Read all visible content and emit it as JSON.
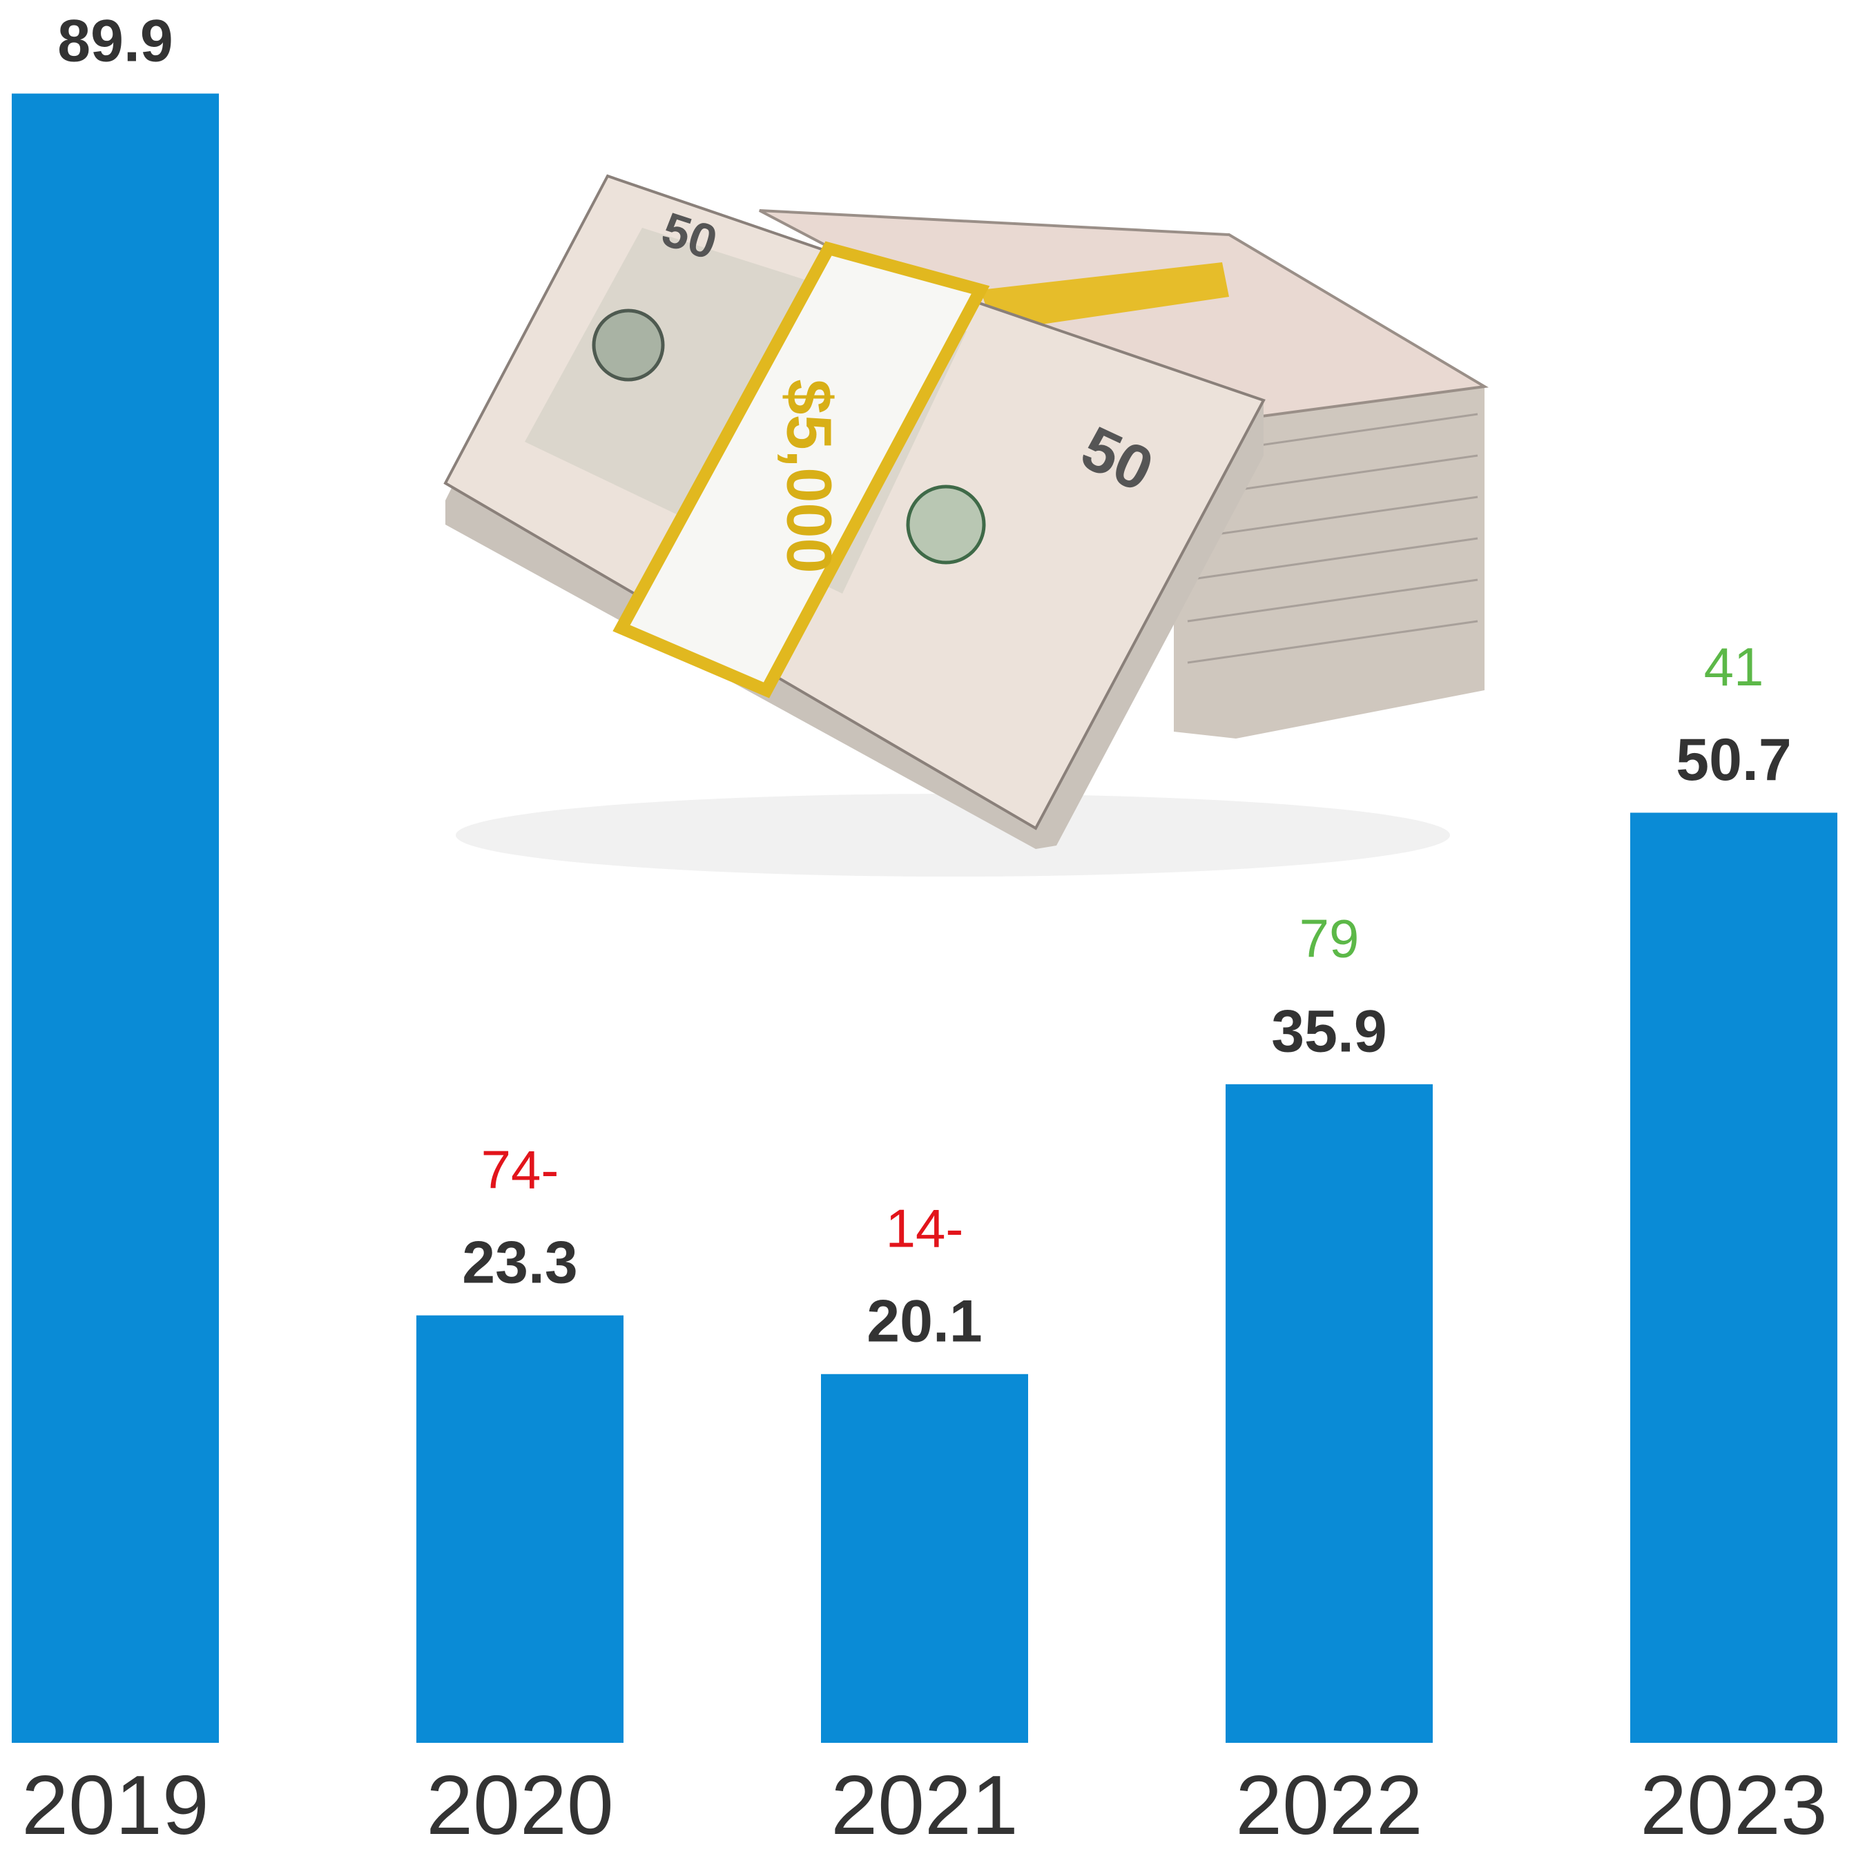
{
  "chart_data": {
    "type": "bar",
    "categories": [
      "2019",
      "2020",
      "2021",
      "2022",
      "2023"
    ],
    "values": [
      89.9,
      23.3,
      20.1,
      35.9,
      50.7
    ],
    "color": "#0a8bd6",
    "ylim": [
      0,
      95
    ],
    "change_labels": [
      null,
      "74-",
      "14-",
      "79",
      "41"
    ],
    "change_colors": [
      null,
      "#e2141b",
      "#e2141b",
      "#5cb848",
      "#5cb848"
    ]
  }
}
